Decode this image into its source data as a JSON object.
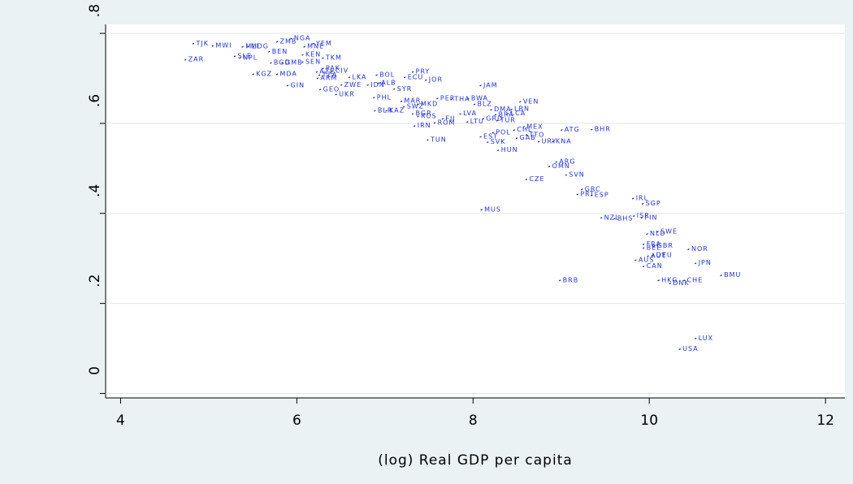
{
  "chart_data": {
    "type": "scatter",
    "x_label": "(log) Real GDP per capita",
    "labels": [
      "TJK",
      "MWI",
      "MLI",
      "MDG",
      "ZMB",
      "NGA",
      "MNE",
      "YEM",
      "BEN",
      "SLE",
      "NPL",
      "ZAR",
      "KEN",
      "TKM",
      "BGD",
      "GMB",
      "SEN",
      "PAK",
      "KGZ",
      "MDA",
      "AZE",
      "CIV",
      "TZA",
      "ARM",
      "LKA",
      "BOL",
      "PRY",
      "ECU",
      "JOR",
      "ALB",
      "IDN",
      "ZWE",
      "SYR",
      "GIN",
      "GEO",
      "UKR",
      "JAM",
      "PHL",
      "MAR",
      "PER",
      "THA",
      "BWA",
      "VEN",
      "BLR",
      "KAZ",
      "SWZ",
      "MKD",
      "BLZ",
      "DMA",
      "LBN",
      "LVA",
      "BGR",
      "RUS",
      "FJI",
      "BRA",
      "LCA",
      "GRD",
      "TUR",
      "LTU",
      "ROM",
      "IRN",
      "MEX",
      "CHL",
      "POL",
      "ATG",
      "BHR",
      "EST",
      "TTO",
      "GAB",
      "URY",
      "KNA",
      "TUN",
      "SVK",
      "HUN",
      "ARG",
      "OMN",
      "SVN",
      "CZE",
      "GRC",
      "PRT",
      "ESP",
      "IRL",
      "SGP",
      "MUS",
      "NZL",
      "BHS",
      "ISR",
      "FIN",
      "SWE",
      "NLD",
      "FRA",
      "GBR",
      "BEL",
      "AUT",
      "DEU",
      "AUS",
      "NOR",
      "JPN",
      "CAN",
      "BMU",
      "HKG",
      "CHE",
      "DNK",
      "BRB",
      "LUX",
      "USA"
    ],
    "x": [
      4.83,
      5.05,
      5.39,
      5.45,
      5.78,
      5.94,
      6.09,
      6.19,
      5.69,
      5.3,
      5.36,
      4.74,
      6.07,
      6.3,
      5.71,
      5.84,
      6.07,
      6.3,
      5.51,
      5.78,
      6.23,
      6.41,
      6.26,
      6.24,
      6.6,
      6.91,
      7.32,
      7.23,
      7.47,
      6.93,
      6.81,
      6.51,
      7.11,
      5.9,
      6.27,
      6.45,
      8.09,
      6.88,
      7.19,
      7.6,
      7.76,
      7.95,
      8.54,
      6.89,
      7.02,
      7.22,
      7.38,
      8.02,
      8.21,
      8.44,
      7.86,
      7.32,
      7.38,
      7.66,
      8.26,
      8.4,
      8.12,
      8.28,
      7.94,
      7.57,
      7.34,
      8.58,
      8.47,
      8.23,
      9.01,
      9.35,
      8.09,
      8.61,
      8.5,
      8.75,
      8.91,
      7.49,
      8.17,
      8.29,
      8.95,
      8.87,
      9.06,
      8.61,
      9.24,
      9.19,
      9.35,
      9.82,
      9.93,
      8.1,
      9.46,
      9.61,
      9.83,
      9.92,
      10.1,
      9.98,
      9.94,
      10.06,
      9.94,
      9.99,
      10.05,
      9.85,
      10.45,
      10.53,
      9.94,
      10.82,
      10.11,
      10.4,
      10.24,
      8.99,
      10.53,
      10.35
    ],
    "values": [
      0.778,
      0.773,
      0.771,
      0.771,
      0.782,
      0.789,
      0.771,
      0.778,
      0.76,
      0.75,
      0.746,
      0.742,
      0.753,
      0.746,
      0.735,
      0.735,
      0.737,
      0.723,
      0.71,
      0.71,
      0.715,
      0.717,
      0.708,
      0.701,
      0.703,
      0.708,
      0.715,
      0.703,
      0.697,
      0.69,
      0.686,
      0.686,
      0.677,
      0.685,
      0.676,
      0.665,
      0.685,
      0.658,
      0.65,
      0.656,
      0.654,
      0.656,
      0.649,
      0.629,
      0.629,
      0.638,
      0.643,
      0.643,
      0.631,
      0.632,
      0.622,
      0.622,
      0.616,
      0.611,
      0.62,
      0.622,
      0.611,
      0.607,
      0.604,
      0.602,
      0.595,
      0.593,
      0.586,
      0.58,
      0.586,
      0.587,
      0.571,
      0.575,
      0.568,
      0.56,
      0.56,
      0.564,
      0.559,
      0.541,
      0.515,
      0.505,
      0.486,
      0.476,
      0.454,
      0.443,
      0.441,
      0.434,
      0.422,
      0.409,
      0.391,
      0.389,
      0.395,
      0.391,
      0.36,
      0.355,
      0.332,
      0.328,
      0.324,
      0.306,
      0.308,
      0.297,
      0.321,
      0.29,
      0.283,
      0.263,
      0.252,
      0.252,
      0.245,
      0.252,
      0.123,
      0.099
    ],
    "xlim": [
      3.83,
      12.22
    ],
    "ylim": [
      -0.01,
      0.82
    ],
    "xticks": [
      4,
      6,
      8,
      10,
      12
    ],
    "yticks": [
      0,
      {
        "value": 0.2,
        "label": ".2"
      },
      {
        "value": 0.4,
        "label": ".4"
      },
      {
        "value": 0.6,
        "label": ".6"
      },
      {
        "value": 0.8,
        "label": ".8"
      }
    ],
    "grid": true,
    "color": "#1a237e",
    "label_color": "#1f2ff0"
  }
}
